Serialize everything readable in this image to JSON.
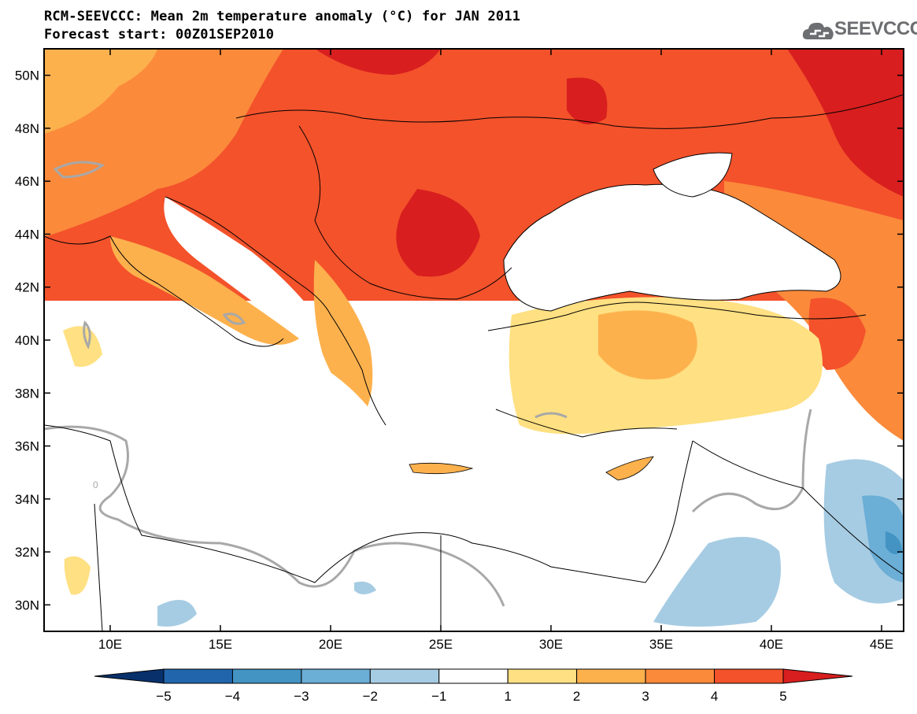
{
  "title": {
    "line1": "RCM-SEEVCCC: Mean 2m temperature anomaly (°C) for JAN 2011",
    "line2": "Forecast start: 00Z01SEP2010"
  },
  "logo": {
    "text": "SEEVCCC"
  },
  "map": {
    "lat_labels": [
      "50N",
      "48N",
      "46N",
      "44N",
      "42N",
      "40N",
      "38N",
      "36N",
      "34N",
      "32N",
      "30N"
    ],
    "lat_values": [
      50,
      48,
      46,
      44,
      42,
      40,
      38,
      36,
      34,
      32,
      30
    ],
    "lon_labels": [
      "10E",
      "15E",
      "20E",
      "25E",
      "30E",
      "35E",
      "40E",
      "45E"
    ],
    "lon_values": [
      10,
      15,
      20,
      25,
      30,
      35,
      40,
      45
    ],
    "lon_range": [
      7,
      46
    ],
    "lat_range": [
      29,
      51
    ],
    "zero_contour_label": "0"
  },
  "colorbar": {
    "labels": [
      "-5",
      "-4",
      "-3",
      "-2",
      "-1",
      "1",
      "2",
      "3",
      "4",
      "5"
    ],
    "colors": [
      "#08306b",
      "#2166ac",
      "#4393c3",
      "#6baed6",
      "#a6cce3",
      "#ffffff",
      "#ffe082",
      "#fdb14d",
      "#fb8a3b",
      "#f3522b",
      "#d81e1e"
    ]
  }
}
